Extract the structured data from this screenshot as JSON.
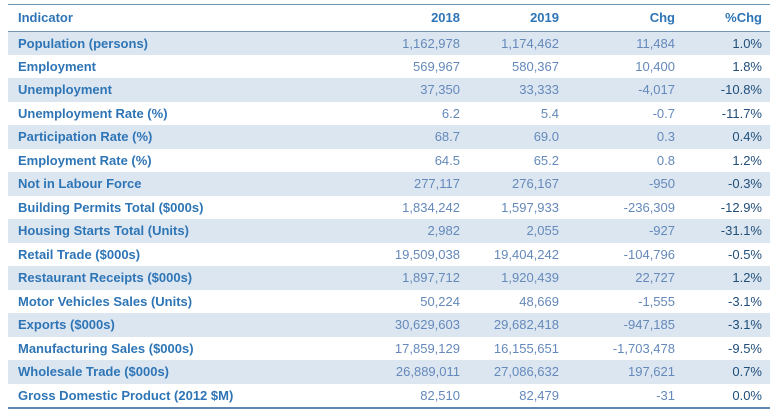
{
  "chart_data": {
    "type": "table",
    "title": "",
    "columns": [
      "Indicator",
      "2018",
      "2019",
      "Chg",
      "%Chg"
    ],
    "rows": [
      [
        "Population (persons)",
        "1,162,978",
        "1,174,462",
        "11,484",
        "1.0%"
      ],
      [
        "Employment",
        "569,967",
        "580,367",
        "10,400",
        "1.8%"
      ],
      [
        "Unemployment",
        "37,350",
        "33,333",
        "-4,017",
        "-10.8%"
      ],
      [
        "Unemployment Rate (%)",
        "6.2",
        "5.4",
        "-0.7",
        "-11.7%"
      ],
      [
        "Participation Rate (%)",
        "68.7",
        "69.0",
        "0.3",
        "0.4%"
      ],
      [
        "Employment Rate (%)",
        "64.5",
        "65.2",
        "0.8",
        "1.2%"
      ],
      [
        "Not in Labour Force",
        "277,117",
        "276,167",
        "-950",
        "-0.3%"
      ],
      [
        "Building Permits Total ($000s)",
        "1,834,242",
        "1,597,933",
        "-236,309",
        "-12.9%"
      ],
      [
        "Housing Starts Total (Units)",
        "2,982",
        "2,055",
        "-927",
        "-31.1%"
      ],
      [
        "Retail Trade ($000s)",
        "19,509,038",
        "19,404,242",
        "-104,796",
        "-0.5%"
      ],
      [
        "Restaurant Receipts ($000s)",
        "1,897,712",
        "1,920,439",
        "22,727",
        "1.2%"
      ],
      [
        "Motor Vehicles Sales (Units)",
        "50,224",
        "48,669",
        "-1,555",
        "-3.1%"
      ],
      [
        "Exports ($000s)",
        "30,629,603",
        "29,682,418",
        "-947,185",
        "-3.1%"
      ],
      [
        "Manufacturing Sales ($000s)",
        "17,859,129",
        "16,155,651",
        "-1,703,478",
        "-9.5%"
      ],
      [
        "Wholesale Trade ($000s)",
        "26,889,011",
        "27,086,632",
        "197,621",
        "0.7%"
      ],
      [
        "Gross Domestic Product (2012 $M)",
        "82,510",
        "82,479",
        "-31",
        "0.0%"
      ]
    ],
    "layout": {
      "banded_rows": true,
      "first_row_banded": true,
      "numeric_alignment": "right"
    }
  },
  "colors": {
    "band": "#DCE6F1",
    "label_text": "#2E75B6",
    "number_text": "#6489BA",
    "pct_text": "#1F4E79",
    "border_top": "#7296B3",
    "header_rule": "#7296B3",
    "border_bottom": "#5E87B4"
  }
}
